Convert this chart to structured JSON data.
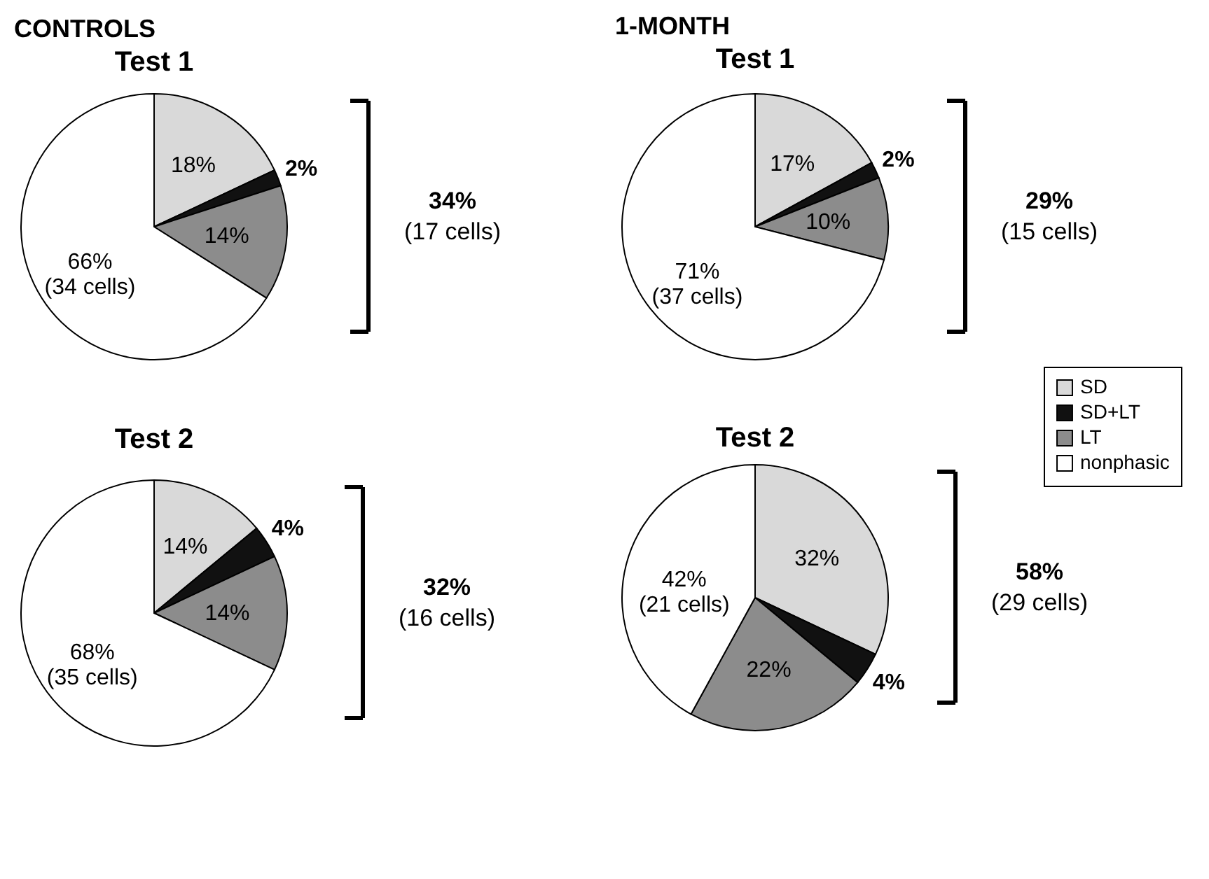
{
  "chart_data": [
    {
      "type": "pie",
      "title": "CONTROLS",
      "subtitle": "Test 1",
      "categories": [
        "SD",
        "SD+LT",
        "LT",
        "nonphasic"
      ],
      "values": [
        18,
        2,
        14,
        66
      ],
      "colors": [
        "#d9d9d9",
        "#111111",
        "#8c8c8c",
        "#ffffff"
      ],
      "value_labels": [
        "18%",
        "2%",
        "14%",
        "66% (34 cells)"
      ],
      "annotations": [
        "34%",
        "(17 cells)"
      ],
      "legend": "right"
    },
    {
      "type": "pie",
      "title": "Test 2",
      "categories": [
        null,
        null,
        null,
        null
      ],
      "values": [
        14,
        4,
        14,
        68
      ],
      "colors": [
        "#d9d9d9",
        "#111111",
        "#8c8c8c",
        "#ffffff"
      ],
      "value_labels": [
        "14%",
        "4%",
        "14%",
        "68% (35 cells)"
      ],
      "annotations": [
        "32%",
        "(16 cells)"
      ]
    },
    {
      "type": "pie",
      "title": "1-MONTH",
      "subtitle": "Test 1",
      "categories": [
        null,
        null,
        null,
        null
      ],
      "values": [
        17,
        2,
        10,
        71
      ],
      "colors": [
        "#d9d9d9",
        "#111111",
        "#8c8c8c",
        "#ffffff"
      ],
      "value_labels": [
        "17%",
        "2%",
        "10%",
        "71% (37 cells)"
      ],
      "annotations": [
        "29%",
        "(15 cells)"
      ]
    },
    {
      "type": "pie",
      "title": "Test 2",
      "categories": [
        null,
        null,
        null,
        null
      ],
      "values": [
        32,
        4,
        22,
        42
      ],
      "colors": [
        "#d9d9d9",
        "#111111",
        "#8c8c8c",
        "#ffffff"
      ],
      "value_labels": [
        "32%",
        "4%",
        "22%",
        "42% (21 cells)"
      ],
      "annotations": [
        "58%",
        "(29 cells)"
      ]
    }
  ]
}
